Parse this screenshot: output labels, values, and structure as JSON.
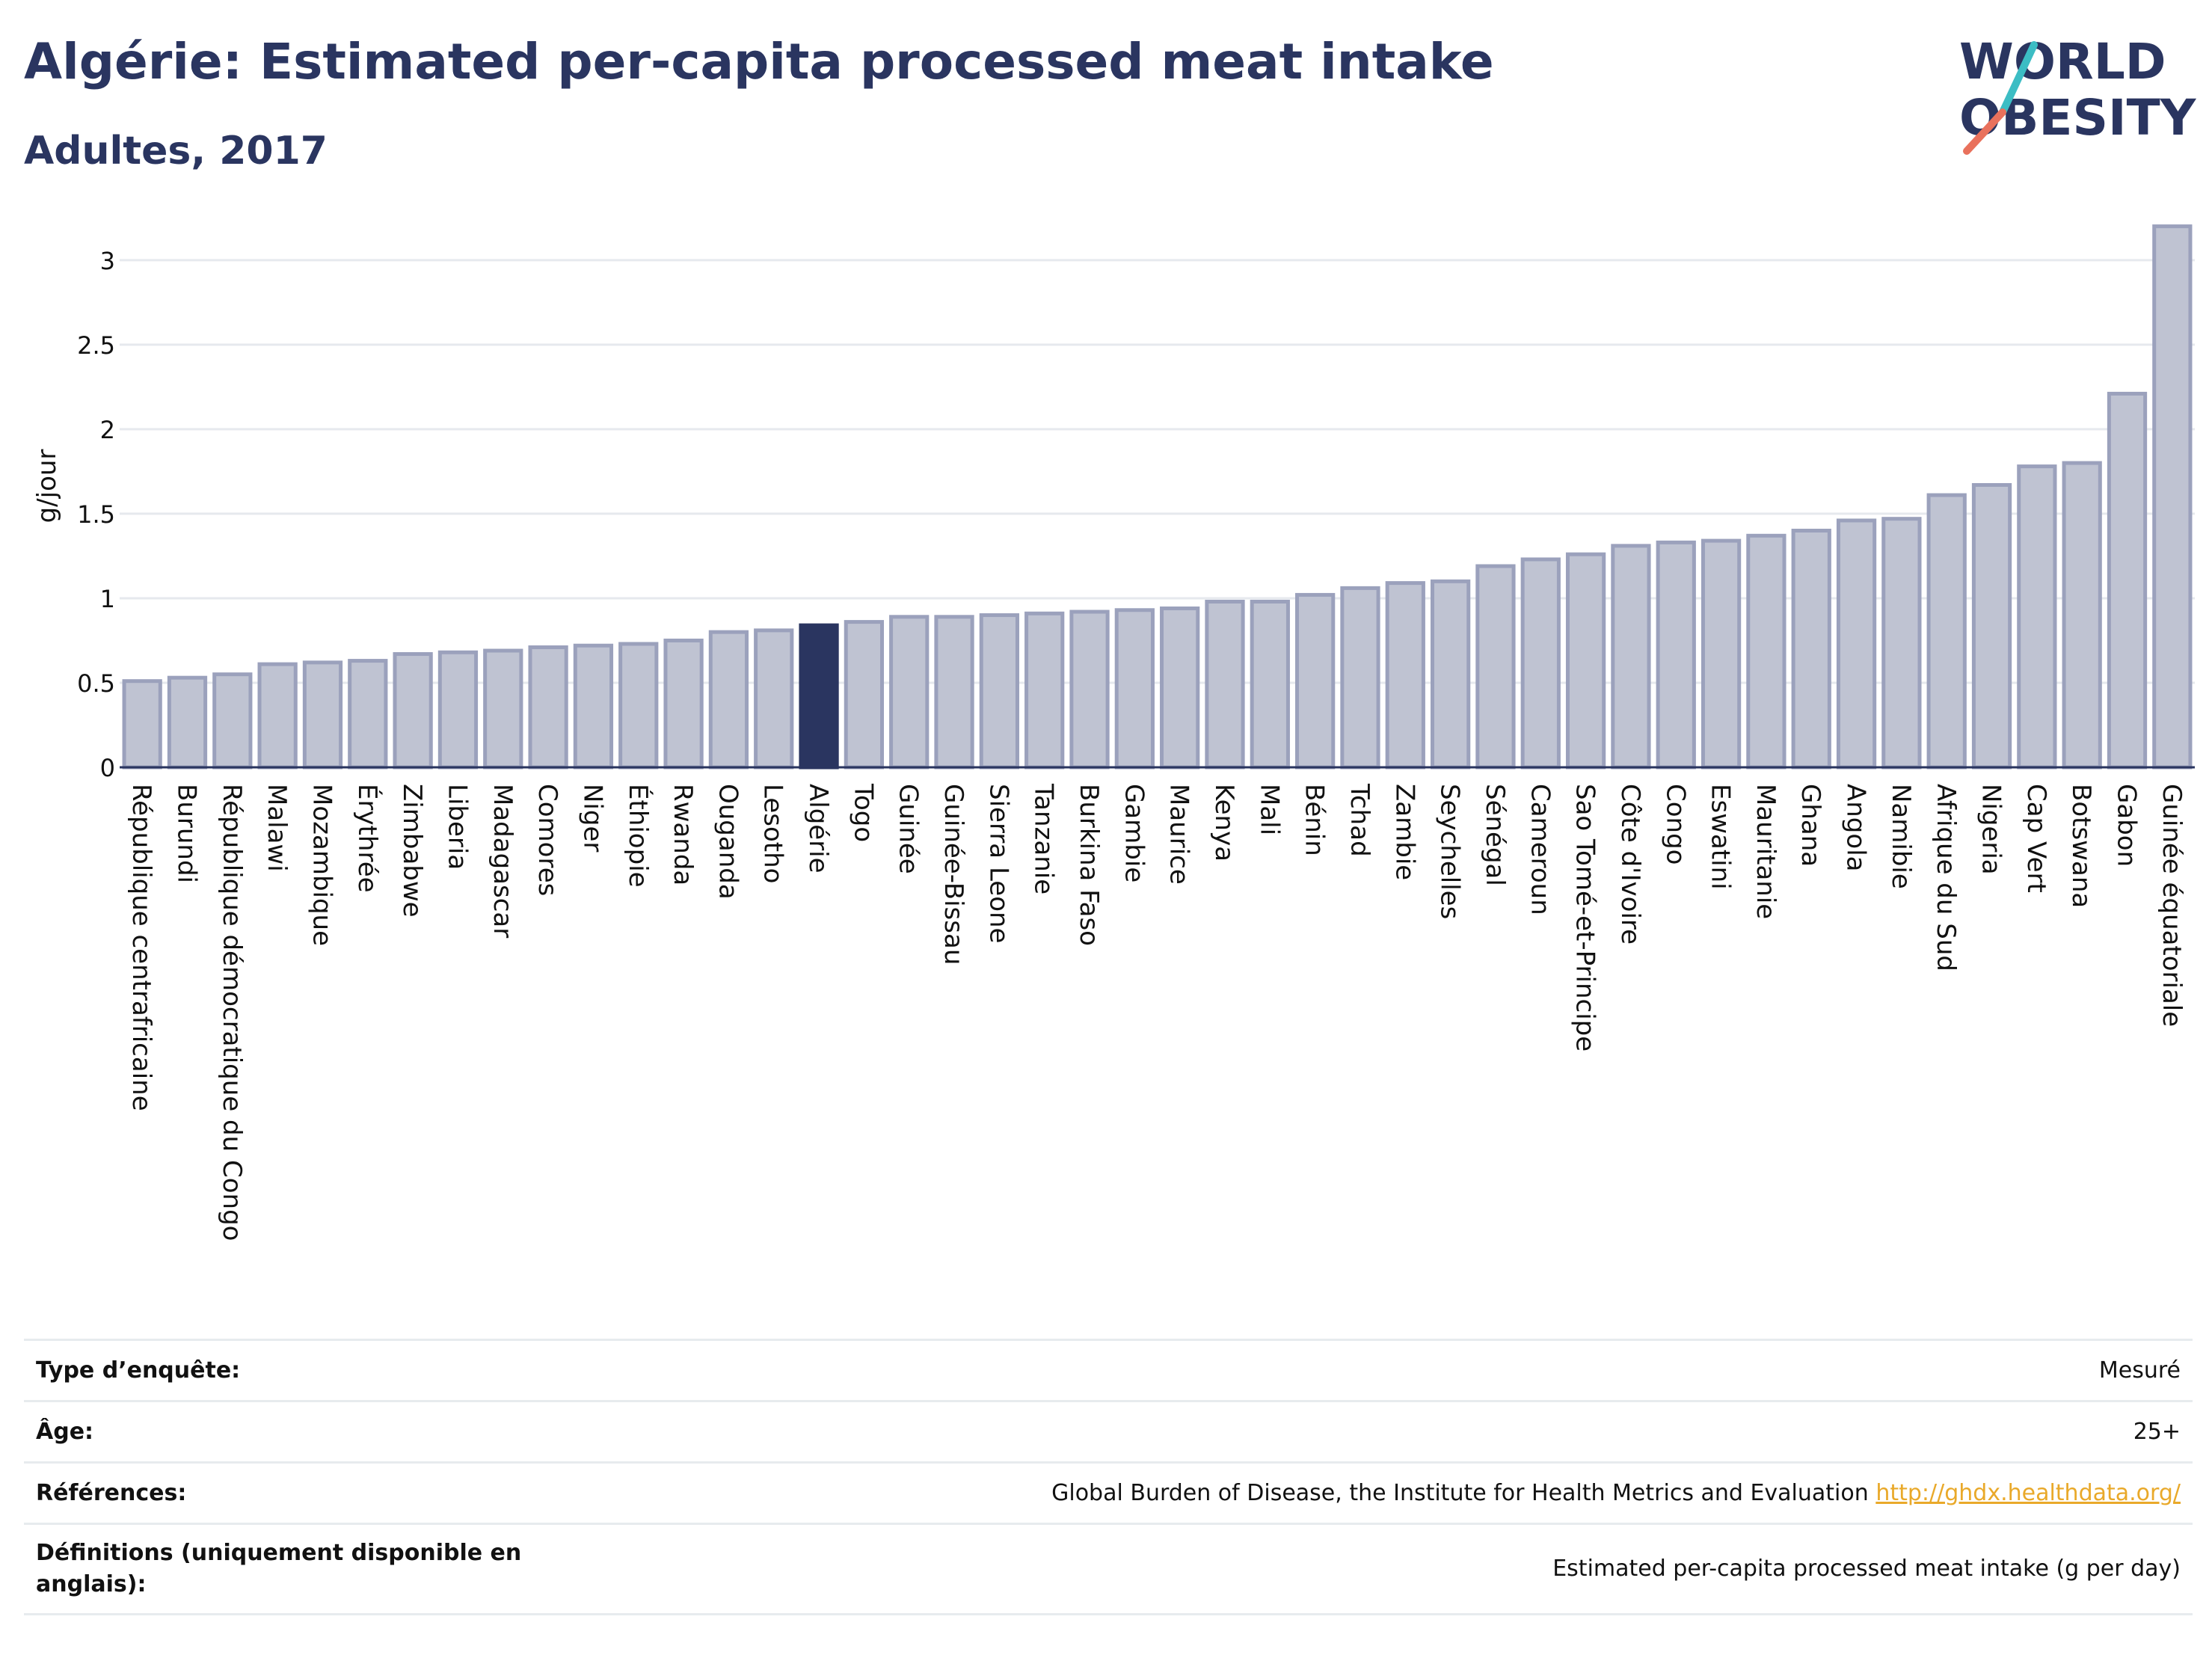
{
  "header": {
    "title": "Algérie: Estimated per-capita processed meat intake",
    "subtitle": "Adultes, 2017",
    "logo_text": "WORLD OBESITY"
  },
  "colors": {
    "bar": "#bfc3d2",
    "bar_stroke": "#9ba1bc",
    "highlight": "#2a3560",
    "title": "#2a3560",
    "logo_teal": "#3cbdc4",
    "logo_coral": "#e9715c",
    "link": "#e9a92a"
  },
  "chart_data": {
    "type": "bar",
    "ylabel": "g/jour",
    "ylim": [
      0,
      3.3
    ],
    "yticks": [
      0,
      0.5,
      1,
      1.5,
      2,
      2.5,
      3
    ],
    "ytick_labels": [
      "0",
      "0.5",
      "1",
      "1.5",
      "2",
      "2.5",
      "3"
    ],
    "grid": true,
    "highlight": "Algérie",
    "categories": [
      "République centrafricaine",
      "Burundi",
      "République démocratique du Congo",
      "Malawi",
      "Mozambique",
      "Érythrée",
      "Zimbabwe",
      "Liberia",
      "Madagascar",
      "Comores",
      "Niger",
      "Éthiopie",
      "Rwanda",
      "Ouganda",
      "Lesotho",
      "Algérie",
      "Togo",
      "Guinée",
      "Guinée-Bissau",
      "Sierra Leone",
      "Tanzanie",
      "Burkina Faso",
      "Gambie",
      "Maurice",
      "Kenya",
      "Mali",
      "Bénin",
      "Tchad",
      "Zambie",
      "Seychelles",
      "Sénégal",
      "Cameroun",
      "Sao Tomé-et-Principe",
      "Côte d'Ivoire",
      "Congo",
      "Eswatini",
      "Mauritanie",
      "Ghana",
      "Angola",
      "Namibie",
      "Afrique du Sud",
      "Nigeria",
      "Cap Vert",
      "Botswana",
      "Gabon",
      "Guinée équatoriale"
    ],
    "values": [
      0.51,
      0.53,
      0.55,
      0.61,
      0.62,
      0.63,
      0.67,
      0.68,
      0.69,
      0.71,
      0.72,
      0.73,
      0.75,
      0.8,
      0.81,
      0.84,
      0.86,
      0.89,
      0.89,
      0.9,
      0.91,
      0.92,
      0.93,
      0.94,
      0.98,
      0.98,
      1.02,
      1.06,
      1.09,
      1.1,
      1.19,
      1.23,
      1.26,
      1.31,
      1.33,
      1.34,
      1.37,
      1.4,
      1.46,
      1.47,
      1.61,
      1.67,
      1.78,
      1.8,
      2.21,
      3.2
    ]
  },
  "info": {
    "survey_type": {
      "label": "Type d’enquête:",
      "value": "Mesuré"
    },
    "age": {
      "label": "Âge:",
      "value": "25+"
    },
    "references": {
      "label": "Références:",
      "value": "Global Burden of Disease, the Institute for Health Metrics and Evaluation",
      "link": "http://ghdx.healthdata.org/"
    },
    "definitions": {
      "label": "Définitions (uniquement disponible en anglais):",
      "value": "Estimated per-capita processed meat intake (g per day)"
    }
  }
}
